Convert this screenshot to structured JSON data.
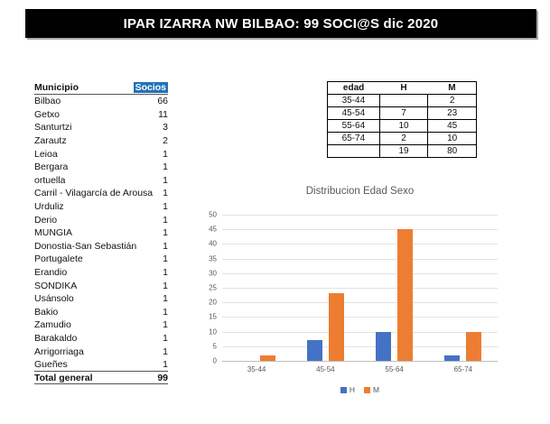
{
  "banner": {
    "title": "IPAR IZARRA NW BILBAO: 99 SOCI@S dic 2020"
  },
  "colors": {
    "banner_bg": "#000000",
    "banner_text": "#ffffff",
    "socios_selection": "#2272b9",
    "h_series": "#4472c4",
    "m_series": "#ed7d31",
    "gridline": "#e2e2e2",
    "axis_text": "#595959"
  },
  "municipio_table": {
    "headers": [
      "Municipio",
      "Socios"
    ],
    "rows": [
      [
        "Bilbao",
        "66"
      ],
      [
        "Getxo",
        "11"
      ],
      [
        "Santurtzi",
        "3"
      ],
      [
        "Zarautz",
        "2"
      ],
      [
        "Leioa",
        "1"
      ],
      [
        "Bergara",
        "1"
      ],
      [
        "ortuella",
        "1"
      ],
      [
        "Carril - Vilagarcía de Arousa",
        "1"
      ],
      [
        "Urduliz",
        "1"
      ],
      [
        "Derio",
        "1"
      ],
      [
        "MUNGIA",
        "1"
      ],
      [
        "Donostia-San Sebastián",
        "1"
      ],
      [
        "Portugalete",
        "1"
      ],
      [
        "Erandio",
        "1"
      ],
      [
        "SONDIKA",
        "1"
      ],
      [
        "Usánsolo",
        "1"
      ],
      [
        "Bakio",
        "1"
      ],
      [
        "Zamudio",
        "1"
      ],
      [
        "Barakaldo",
        "1"
      ],
      [
        "Arrigorriaga",
        "1"
      ],
      [
        "Gueñes",
        "1"
      ]
    ],
    "total_label": "Total general",
    "total_value": "99"
  },
  "edad_table": {
    "headers": [
      "edad",
      "H",
      "M"
    ],
    "rows": [
      [
        "35-44",
        "",
        "2"
      ],
      [
        "45-54",
        "7",
        "23"
      ],
      [
        "55-64",
        "10",
        "45"
      ],
      [
        "65-74",
        "2",
        "10"
      ]
    ],
    "total_row": [
      "",
      "19",
      "80"
    ]
  },
  "chart_data": {
    "type": "bar",
    "title": "Distribucion Edad Sexo",
    "categories": [
      "35-44",
      "45-54",
      "55-64",
      "65-74"
    ],
    "series": [
      {
        "name": "H",
        "color": "#4472c4",
        "values": [
          0,
          7,
          10,
          2
        ]
      },
      {
        "name": "M",
        "color": "#ed7d31",
        "values": [
          2,
          23,
          45,
          10
        ]
      }
    ],
    "xlabel": "",
    "ylabel": "",
    "ylim": [
      0,
      50
    ],
    "ytick_step": 5,
    "grid": true,
    "legend_position": "bottom"
  }
}
